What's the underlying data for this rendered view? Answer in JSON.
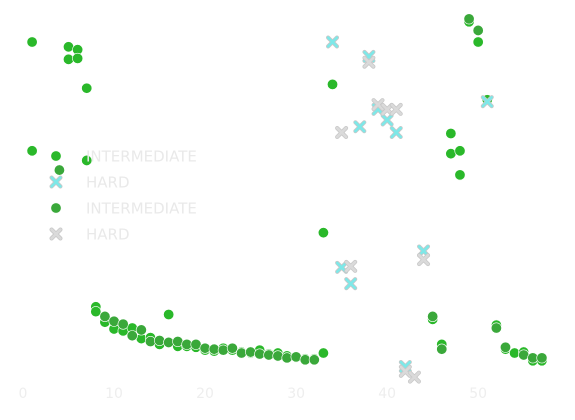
{
  "chart_data": {
    "type": "scatter",
    "title": "",
    "xlabel": "",
    "ylabel": "",
    "xlim": [
      0,
      58
    ],
    "ylim": [
      -1.8,
      36
    ],
    "x_ticks": [
      0,
      10,
      20,
      30,
      40,
      50
    ],
    "x_tick_labels": [
      "0",
      "10",
      "20",
      "30",
      "40",
      "50"
    ],
    "show_y_axis": false,
    "grid": false,
    "legend_position": "center-left",
    "legend": [
      {
        "label": "INTERMEDIATE",
        "marker": "circle",
        "series": 0
      },
      {
        "label": "HARD",
        "marker": "x",
        "series": 1
      },
      {
        "label": "INTERMEDIATE",
        "marker": "circle",
        "series": 2
      },
      {
        "label": "HARD",
        "marker": "x",
        "series": 3
      }
    ],
    "series": [
      {
        "label": "INTERMEDIATE",
        "marker": "circle",
        "color": "#2ab82a",
        "points": [
          [
            1,
            33.3
          ],
          [
            5,
            32.8
          ],
          [
            6,
            32.5
          ],
          [
            5,
            31.5
          ],
          [
            6,
            31.6
          ],
          [
            7,
            28.5
          ],
          [
            1,
            22.0
          ],
          [
            7,
            21.0
          ],
          [
            8,
            5.8
          ],
          [
            8,
            5.3
          ],
          [
            9,
            4.2
          ],
          [
            10,
            3.5
          ],
          [
            11,
            3.3
          ],
          [
            12,
            3.6
          ],
          [
            13,
            2.5
          ],
          [
            14,
            2.6
          ],
          [
            16,
            5.0
          ],
          [
            15,
            1.9
          ],
          [
            17,
            1.7
          ],
          [
            18,
            1.7
          ],
          [
            19,
            1.6
          ],
          [
            20,
            1.3
          ],
          [
            21,
            1.2
          ],
          [
            22,
            1.5
          ],
          [
            23,
            1.3
          ],
          [
            24,
            1.1
          ],
          [
            25,
            1.0
          ],
          [
            26,
            1.3
          ],
          [
            27,
            0.9
          ],
          [
            28,
            1.0
          ],
          [
            29,
            0.7
          ],
          [
            30,
            0.6
          ],
          [
            31,
            0.4
          ],
          [
            32,
            0.4
          ],
          [
            33,
            1.0
          ],
          [
            33,
            13.5
          ],
          [
            34,
            28.9
          ],
          [
            45,
            4.5
          ],
          [
            46,
            1.9
          ],
          [
            47,
            23.8
          ],
          [
            47,
            21.7
          ],
          [
            48,
            22.0
          ],
          [
            48,
            19.5
          ],
          [
            49,
            35.4
          ],
          [
            50,
            33.3
          ],
          [
            51,
            27.3
          ],
          [
            52,
            3.9
          ],
          [
            53,
            1.4
          ],
          [
            54,
            1.0
          ],
          [
            55,
            1.1
          ],
          [
            56,
            0.2
          ],
          [
            57,
            0.2
          ]
        ]
      },
      {
        "label": "HARD",
        "marker": "x",
        "color": "#7ee8e8",
        "points": [
          [
            34,
            33.3
          ],
          [
            35,
            9.9
          ],
          [
            36,
            8.2
          ],
          [
            37,
            24.5
          ],
          [
            38,
            31.8
          ],
          [
            39,
            26.3
          ],
          [
            40,
            25.2
          ],
          [
            41,
            23.9
          ],
          [
            42,
            -0.4
          ],
          [
            44,
            11.6
          ],
          [
            51,
            27.1
          ]
        ]
      },
      {
        "label": "INTERMEDIATE",
        "marker": "circle",
        "color": "#3aa83a",
        "points": [
          [
            4,
            20.0
          ],
          [
            9,
            4.8
          ],
          [
            10,
            4.3
          ],
          [
            11,
            4.0
          ],
          [
            12,
            2.8
          ],
          [
            13,
            3.4
          ],
          [
            14,
            2.2
          ],
          [
            15,
            2.3
          ],
          [
            16,
            2.1
          ],
          [
            17,
            2.2
          ],
          [
            18,
            1.9
          ],
          [
            19,
            1.9
          ],
          [
            20,
            1.5
          ],
          [
            21,
            1.4
          ],
          [
            22,
            1.3
          ],
          [
            23,
            1.5
          ],
          [
            24,
            1.0
          ],
          [
            25,
            1.1
          ],
          [
            26,
            0.9
          ],
          [
            27,
            0.8
          ],
          [
            28,
            0.7
          ],
          [
            29,
            0.5
          ],
          [
            30,
            0.6
          ],
          [
            31,
            0.3
          ],
          [
            32,
            0.3
          ],
          [
            45,
            4.8
          ],
          [
            46,
            1.4
          ],
          [
            49,
            35.7
          ],
          [
            50,
            34.5
          ],
          [
            52,
            3.6
          ],
          [
            53,
            1.6
          ],
          [
            55,
            0.8
          ],
          [
            56,
            0.5
          ],
          [
            57,
            0.5
          ]
        ]
      },
      {
        "label": "HARD",
        "marker": "x",
        "color": "#dadada",
        "points": [
          [
            35,
            23.9
          ],
          [
            36,
            10.0
          ],
          [
            38,
            31.2
          ],
          [
            39,
            26.8
          ],
          [
            40,
            26.3
          ],
          [
            41,
            26.3
          ],
          [
            42,
            -0.9
          ],
          [
            43,
            -1.5
          ],
          [
            44,
            10.7
          ]
        ]
      }
    ]
  }
}
